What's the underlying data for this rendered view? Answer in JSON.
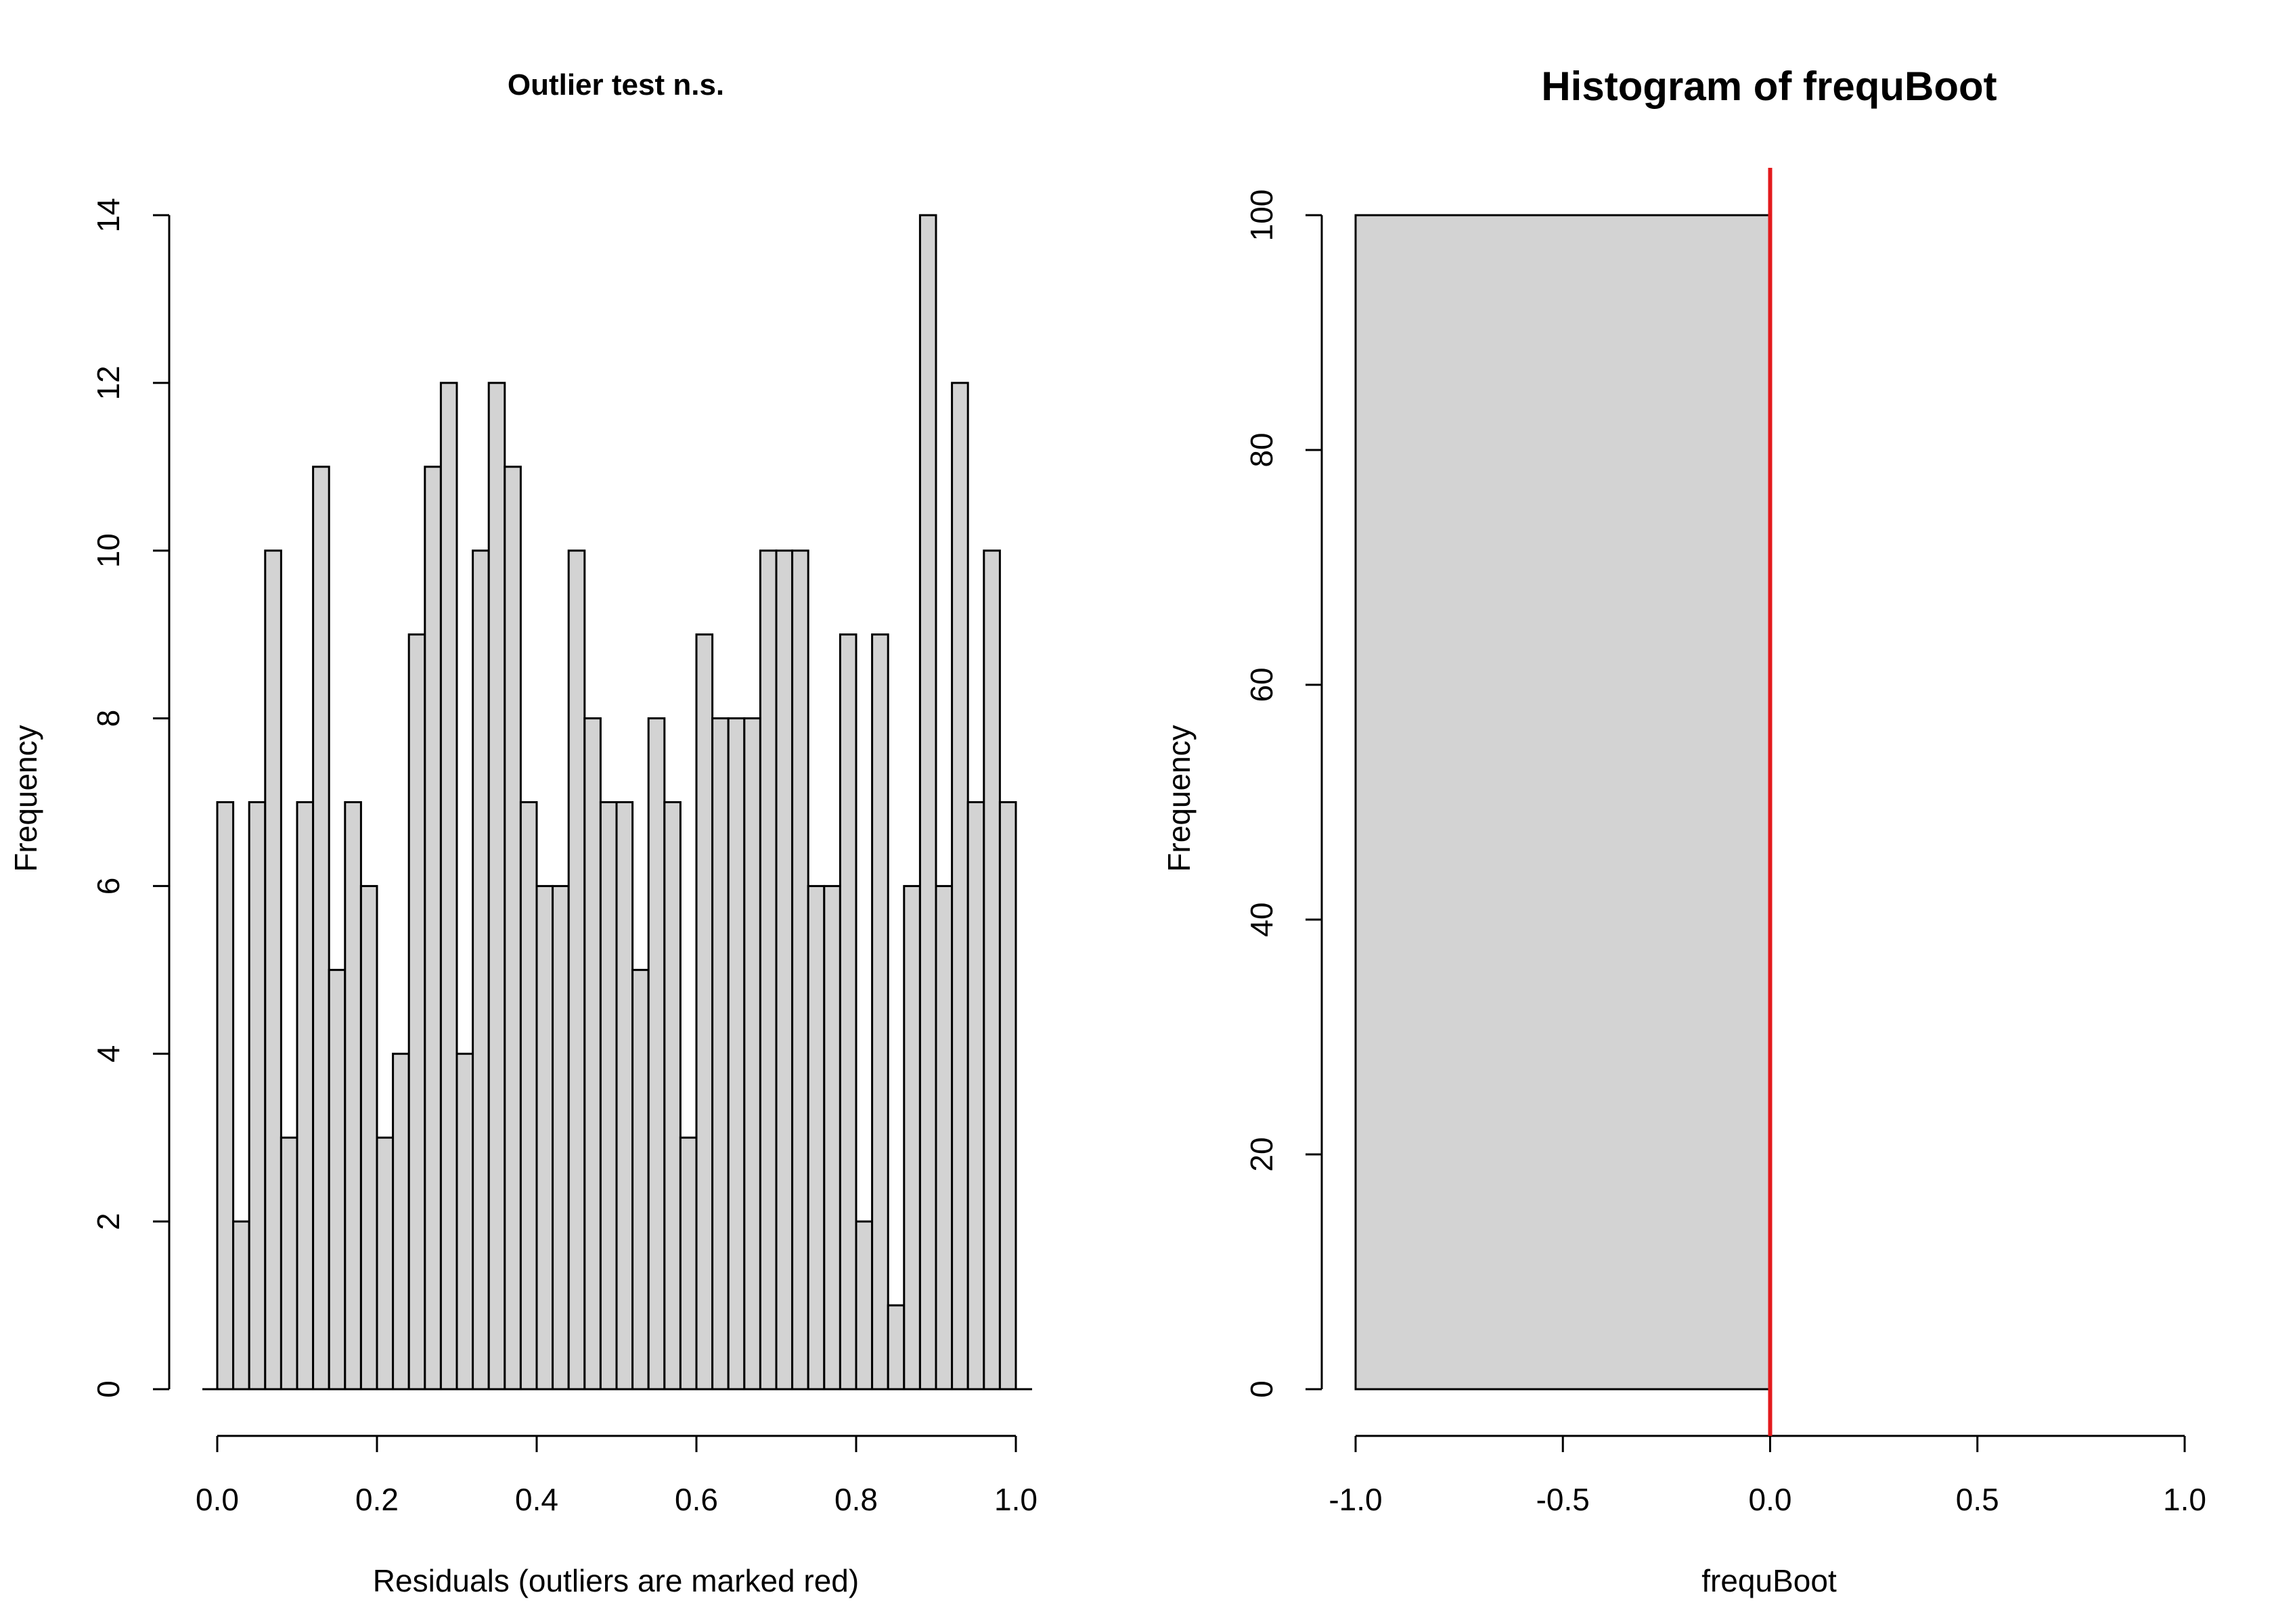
{
  "chart_data": [
    {
      "type": "bar",
      "title": "Outlier test n.s.",
      "xlabel": "Residuals (outliers are marked red)",
      "ylabel": "Frequency",
      "xlim": [
        0,
        1
      ],
      "ylim": [
        0,
        14
      ],
      "xticks": [
        0,
        0.2,
        0.4,
        0.6,
        0.8,
        1.0
      ],
      "xtick_labels": [
        "0.0",
        "0.2",
        "0.4",
        "0.6",
        "0.8",
        "1.0"
      ],
      "yticks": [
        0,
        2,
        4,
        6,
        8,
        10,
        12,
        14
      ],
      "ytick_labels": [
        "0",
        "2",
        "4",
        "6",
        "8",
        "10",
        "12",
        "14"
      ],
      "bin_width": 0.02,
      "values": [
        7,
        2,
        7,
        10,
        3,
        7,
        11,
        5,
        7,
        6,
        3,
        4,
        9,
        11,
        12,
        4,
        10,
        12,
        11,
        7,
        6,
        6,
        10,
        8,
        7,
        7,
        5,
        8,
        7,
        3,
        9,
        8,
        8,
        8,
        10,
        10,
        10,
        6,
        6,
        9,
        2,
        9,
        1,
        6,
        14,
        6,
        12,
        7,
        10,
        7
      ],
      "bar_color": "#d3d3d3",
      "grid": false
    },
    {
      "type": "bar",
      "title": "Histogram of frequBoot",
      "xlabel": "frequBoot",
      "ylabel": "Frequency",
      "xlim": [
        -1,
        1
      ],
      "ylim": [
        0,
        100
      ],
      "xticks": [
        -1,
        -0.5,
        0,
        0.5,
        1
      ],
      "xtick_labels": [
        "-1.0",
        "-0.5",
        "0.0",
        "0.5",
        "1.0"
      ],
      "yticks": [
        0,
        20,
        40,
        60,
        80,
        100
      ],
      "ytick_labels": [
        "0",
        "20",
        "40",
        "60",
        "80",
        "100"
      ],
      "bins": [
        {
          "from": -1,
          "to": 0,
          "count": 100
        }
      ],
      "bar_color": "#d3d3d3",
      "reference_line": {
        "x": 0,
        "color": "#e31a1c"
      },
      "grid": false
    }
  ]
}
